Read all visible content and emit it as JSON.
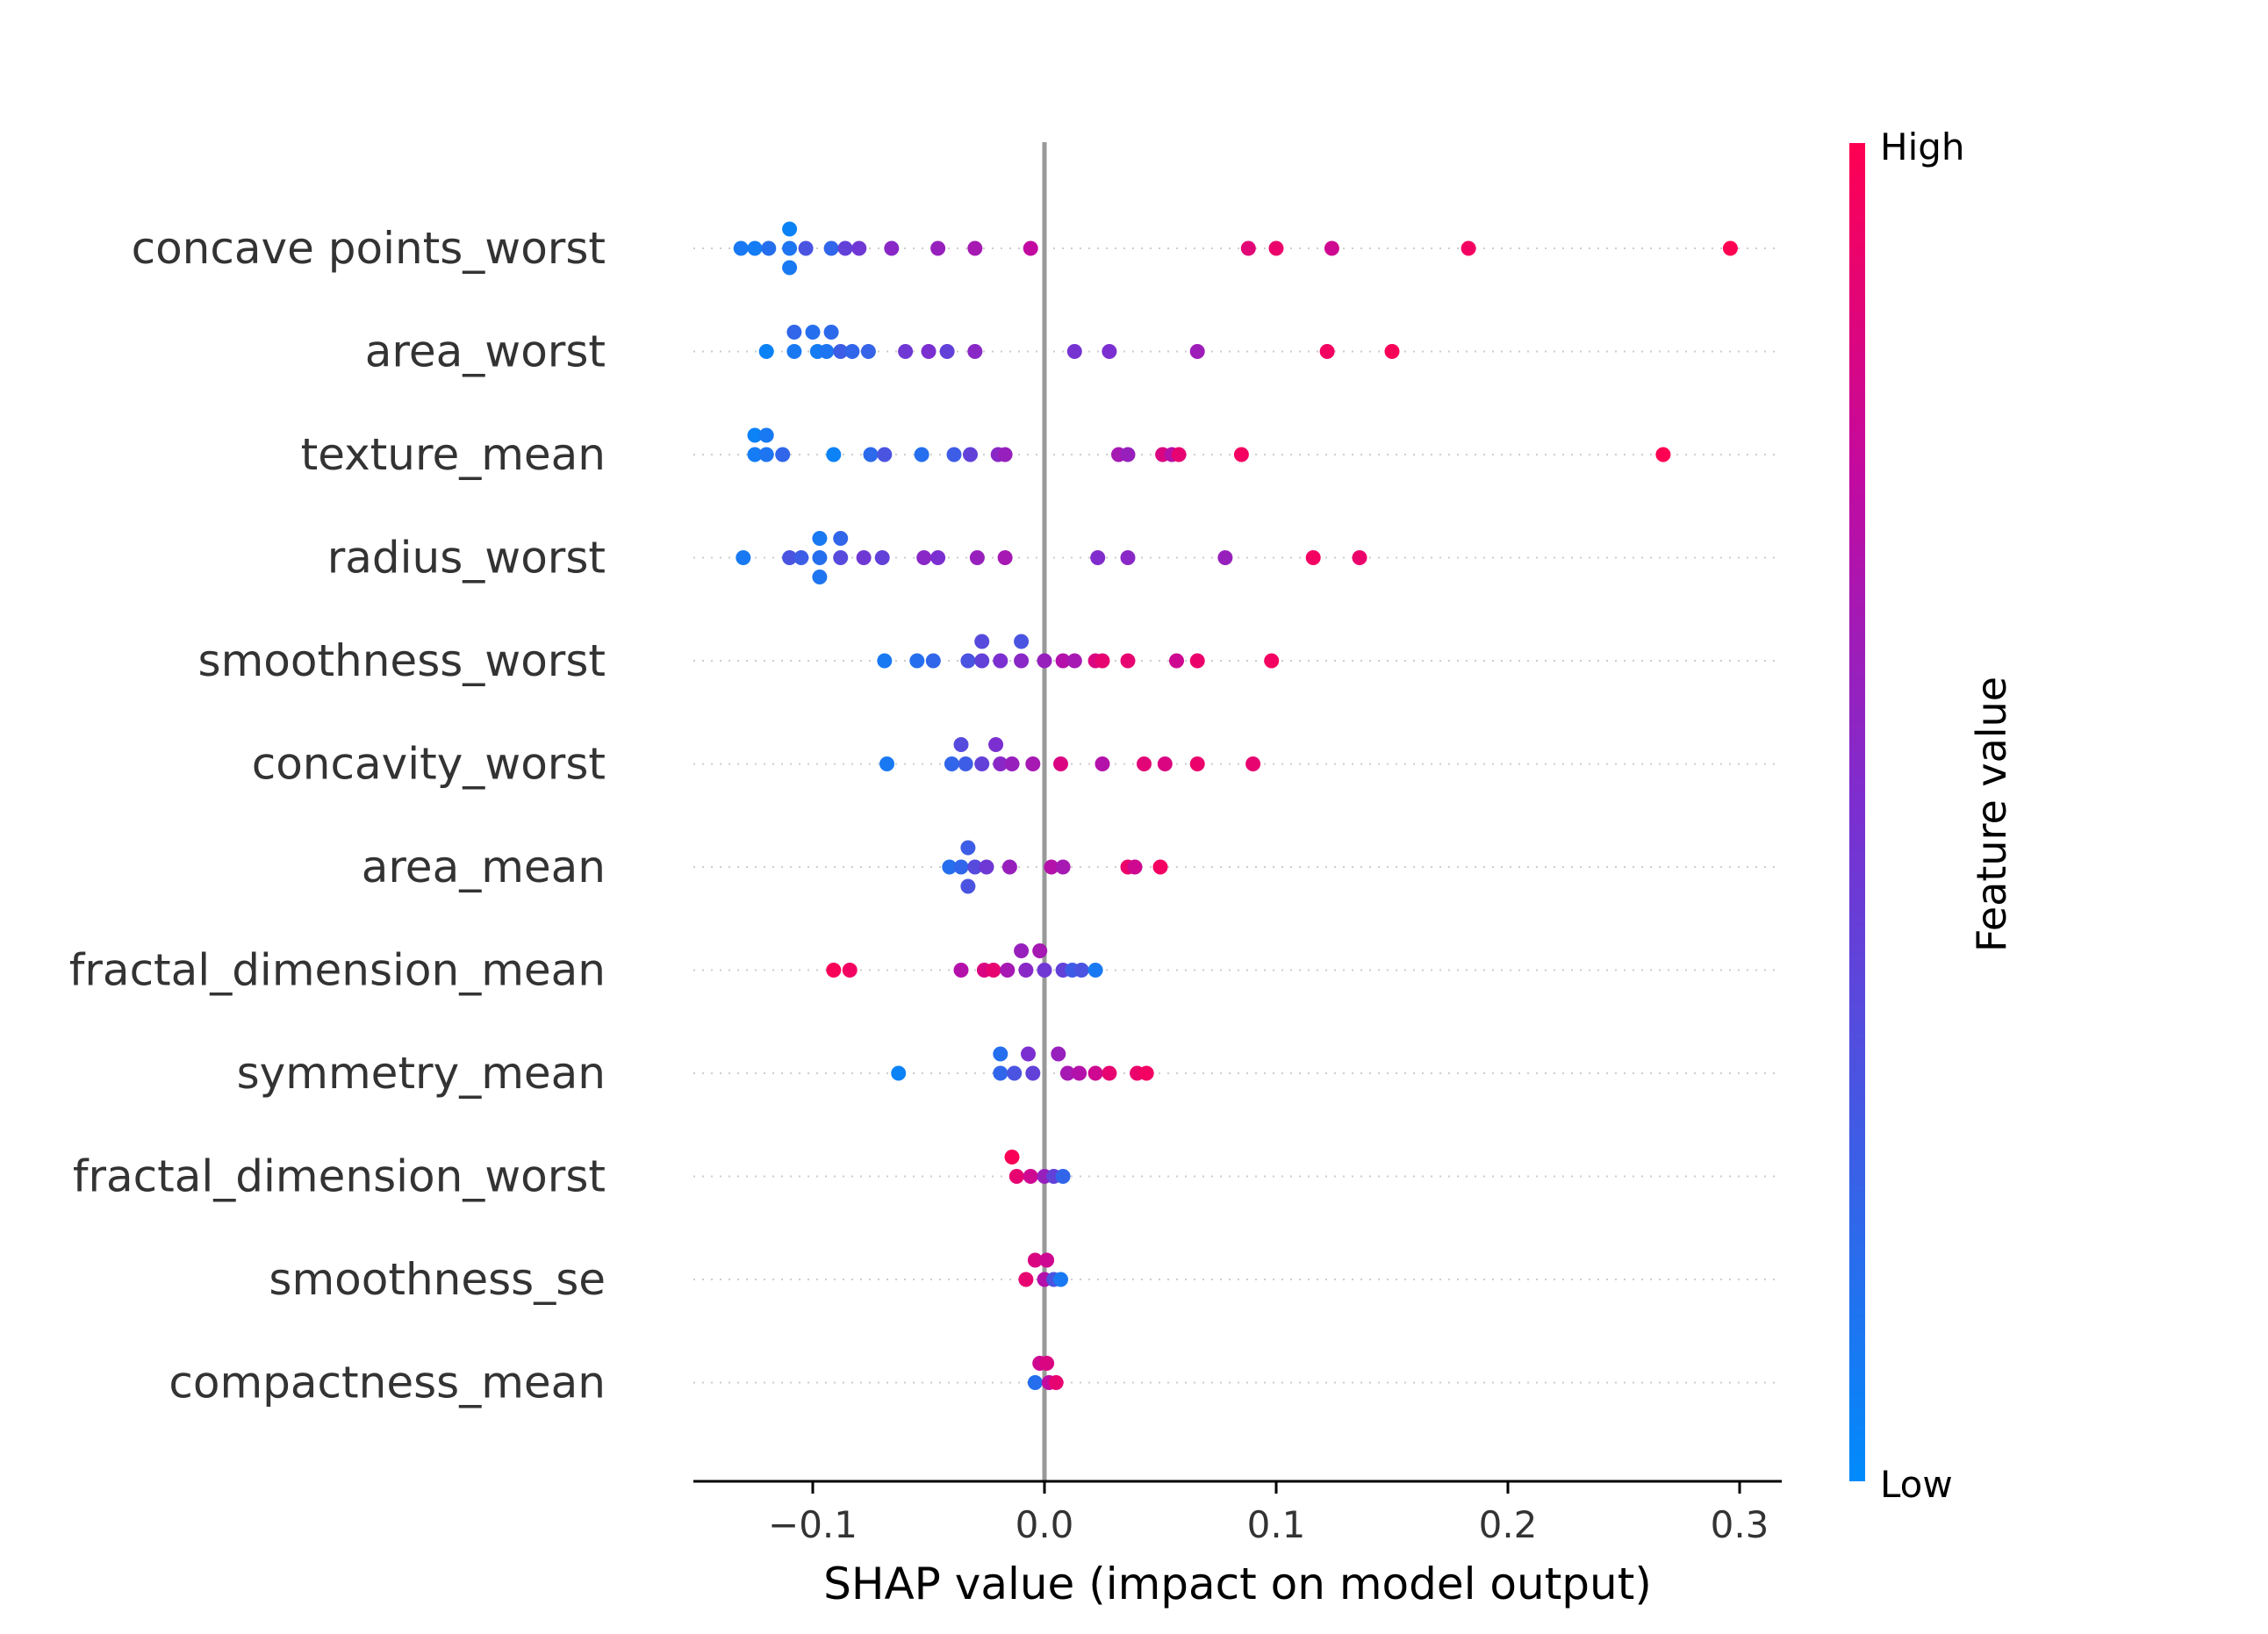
{
  "chart_data": {
    "type": "scatter",
    "subtype": "shap_beeswarm",
    "xlabel": "SHAP value (impact on model output)",
    "xlim": [
      -0.15,
      0.32
    ],
    "xticks": [
      -0.1,
      0.0,
      0.1,
      0.2,
      0.3
    ],
    "xtick_labels": [
      "−0.1",
      "0.0",
      "0.1",
      "0.2",
      "0.3"
    ],
    "colorbar": {
      "label": "Feature value",
      "high_label": "High",
      "low_label": "Low",
      "low_color": "#008bfb",
      "high_color": "#ff0052"
    },
    "features": [
      {
        "name": "concave points_worst",
        "points": [
          [
            -0.131,
            0.0,
            0.1
          ],
          [
            -0.125,
            0.0,
            0.08
          ],
          [
            -0.119,
            0.0,
            0.15
          ],
          [
            -0.11,
            0.0,
            0.12
          ],
          [
            -0.11,
            1,
            0.05
          ],
          [
            -0.11,
            -1,
            0.1
          ],
          [
            -0.103,
            0.0,
            0.3
          ],
          [
            -0.092,
            0.0,
            0.2
          ],
          [
            -0.086,
            0.0,
            0.4
          ],
          [
            -0.08,
            0.0,
            0.45
          ],
          [
            -0.066,
            0.0,
            0.55
          ],
          [
            -0.046,
            0.0,
            0.6
          ],
          [
            -0.03,
            0.0,
            0.65
          ],
          [
            -0.006,
            0.0,
            0.75
          ],
          [
            0.088,
            0.0,
            0.88
          ],
          [
            0.1,
            0.0,
            0.92
          ],
          [
            0.124,
            0.0,
            0.8
          ],
          [
            0.183,
            0.0,
            0.95
          ],
          [
            0.296,
            0.0,
            1.0
          ]
        ]
      },
      {
        "name": "area_worst",
        "points": [
          [
            -0.12,
            0.0,
            0.05
          ],
          [
            -0.108,
            0.0,
            0.1
          ],
          [
            -0.108,
            1,
            0.2
          ],
          [
            -0.1,
            1,
            0.15
          ],
          [
            -0.098,
            0.0,
            0.08
          ],
          [
            -0.094,
            0.0,
            0.12
          ],
          [
            -0.092,
            1,
            0.18
          ],
          [
            -0.088,
            0.0,
            0.25
          ],
          [
            -0.083,
            0.0,
            0.2
          ],
          [
            -0.076,
            0.0,
            0.22
          ],
          [
            -0.06,
            0.0,
            0.45
          ],
          [
            -0.05,
            0.0,
            0.5
          ],
          [
            -0.042,
            0.0,
            0.4
          ],
          [
            -0.03,
            0.0,
            0.55
          ],
          [
            0.013,
            0.0,
            0.48
          ],
          [
            0.028,
            0.0,
            0.5
          ],
          [
            0.066,
            0.0,
            0.62
          ],
          [
            0.122,
            0.0,
            0.95
          ],
          [
            0.15,
            0.0,
            0.98
          ]
        ]
      },
      {
        "name": "texture_mean",
        "points": [
          [
            -0.125,
            0.0,
            0.08
          ],
          [
            -0.125,
            1,
            0.05
          ],
          [
            -0.12,
            0.0,
            0.12
          ],
          [
            -0.12,
            1,
            0.1
          ],
          [
            -0.113,
            0.0,
            0.2
          ],
          [
            -0.091,
            0.0,
            0.05
          ],
          [
            -0.075,
            0.0,
            0.18
          ],
          [
            -0.069,
            0.0,
            0.3
          ],
          [
            -0.053,
            0.0,
            0.15
          ],
          [
            -0.039,
            0.0,
            0.25
          ],
          [
            -0.032,
            0.0,
            0.4
          ],
          [
            -0.02,
            0.0,
            0.55
          ],
          [
            -0.017,
            0.0,
            0.6
          ],
          [
            0.032,
            0.0,
            0.65
          ],
          [
            0.036,
            0.0,
            0.6
          ],
          [
            0.051,
            0.0,
            0.85
          ],
          [
            0.055,
            0.0,
            0.7
          ],
          [
            0.058,
            0.0,
            0.9
          ],
          [
            0.085,
            0.0,
            0.95
          ],
          [
            0.267,
            0.0,
            1.0
          ]
        ]
      },
      {
        "name": "radius_worst",
        "points": [
          [
            -0.13,
            0.0,
            0.1
          ],
          [
            -0.11,
            0.0,
            0.3
          ],
          [
            -0.105,
            0.0,
            0.25
          ],
          [
            -0.097,
            0.0,
            0.15
          ],
          [
            -0.097,
            1,
            0.1
          ],
          [
            -0.097,
            -1,
            0.12
          ],
          [
            -0.088,
            1,
            0.2
          ],
          [
            -0.088,
            0.0,
            0.35
          ],
          [
            -0.078,
            0.0,
            0.45
          ],
          [
            -0.07,
            0.0,
            0.4
          ],
          [
            -0.052,
            0.0,
            0.55
          ],
          [
            -0.046,
            0.0,
            0.5
          ],
          [
            -0.029,
            0.0,
            0.6
          ],
          [
            -0.017,
            0.0,
            0.65
          ],
          [
            0.023,
            0.0,
            0.52
          ],
          [
            0.036,
            0.0,
            0.55
          ],
          [
            0.078,
            0.0,
            0.6
          ],
          [
            0.116,
            0.0,
            0.95
          ],
          [
            0.136,
            0.0,
            0.92
          ]
        ]
      },
      {
        "name": "smoothness_worst",
        "points": [
          [
            -0.069,
            0.0,
            0.1
          ],
          [
            -0.055,
            0.0,
            0.15
          ],
          [
            -0.048,
            0.0,
            0.2
          ],
          [
            -0.033,
            0.0,
            0.3
          ],
          [
            -0.027,
            1,
            0.35
          ],
          [
            -0.027,
            0.0,
            0.4
          ],
          [
            -0.019,
            0.0,
            0.5
          ],
          [
            -0.01,
            1,
            0.3
          ],
          [
            -0.01,
            0.0,
            0.55
          ],
          [
            0.0,
            0.0,
            0.6
          ],
          [
            0.008,
            0.0,
            0.7
          ],
          [
            0.013,
            0.0,
            0.65
          ],
          [
            0.022,
            0.0,
            0.85
          ],
          [
            0.025,
            0.0,
            0.9
          ],
          [
            0.036,
            0.0,
            0.9
          ],
          [
            0.057,
            0.0,
            0.8
          ],
          [
            0.066,
            0.0,
            0.92
          ],
          [
            0.098,
            0.0,
            0.95
          ]
        ]
      },
      {
        "name": "concavity_worst",
        "points": [
          [
            -0.068,
            0.0,
            0.1
          ],
          [
            -0.04,
            0.0,
            0.2
          ],
          [
            -0.036,
            1,
            0.35
          ],
          [
            -0.034,
            0.0,
            0.25
          ],
          [
            -0.027,
            0.0,
            0.4
          ],
          [
            -0.021,
            1,
            0.5
          ],
          [
            -0.019,
            0.0,
            0.55
          ],
          [
            -0.014,
            0.0,
            0.6
          ],
          [
            -0.005,
            0.0,
            0.65
          ],
          [
            0.007,
            0.0,
            0.85
          ],
          [
            0.025,
            0.0,
            0.7
          ],
          [
            0.043,
            0.0,
            0.88
          ],
          [
            0.052,
            0.0,
            0.85
          ],
          [
            0.066,
            0.0,
            0.92
          ],
          [
            0.09,
            0.0,
            0.9
          ]
        ]
      },
      {
        "name": "area_mean",
        "points": [
          [
            -0.041,
            0.0,
            0.15
          ],
          [
            -0.036,
            0.0,
            0.2
          ],
          [
            -0.033,
            1,
            0.25
          ],
          [
            -0.033,
            -1,
            0.3
          ],
          [
            -0.03,
            0.0,
            0.35
          ],
          [
            -0.025,
            0.0,
            0.45
          ],
          [
            -0.015,
            0.0,
            0.6
          ],
          [
            0.003,
            0.0,
            0.7
          ],
          [
            0.008,
            0.0,
            0.65
          ],
          [
            0.036,
            0.0,
            0.92
          ],
          [
            0.039,
            0.0,
            0.8
          ],
          [
            0.05,
            0.0,
            0.95
          ]
        ]
      },
      {
        "name": "fractal_dimension_mean",
        "points": [
          [
            -0.091,
            0.0,
            0.98
          ],
          [
            -0.084,
            0.0,
            0.95
          ],
          [
            -0.036,
            0.0,
            0.7
          ],
          [
            -0.026,
            0.0,
            0.85
          ],
          [
            -0.022,
            0.0,
            0.9
          ],
          [
            -0.016,
            0.0,
            0.65
          ],
          [
            -0.01,
            1,
            0.6
          ],
          [
            -0.008,
            0.0,
            0.55
          ],
          [
            -0.002,
            1,
            0.65
          ],
          [
            0.0,
            0.0,
            0.45
          ],
          [
            0.008,
            0.0,
            0.4
          ],
          [
            0.012,
            0.0,
            0.25
          ],
          [
            0.016,
            0.0,
            0.3
          ],
          [
            0.022,
            0.0,
            0.1
          ]
        ]
      },
      {
        "name": "symmetry_mean",
        "points": [
          [
            -0.063,
            0.0,
            0.05
          ],
          [
            -0.019,
            0.0,
            0.2
          ],
          [
            -0.019,
            1,
            0.15
          ],
          [
            -0.013,
            0.0,
            0.3
          ],
          [
            -0.007,
            1,
            0.5
          ],
          [
            -0.005,
            0.0,
            0.4
          ],
          [
            0.006,
            1,
            0.6
          ],
          [
            0.01,
            0.0,
            0.65
          ],
          [
            0.015,
            0.0,
            0.7
          ],
          [
            0.022,
            0.0,
            0.8
          ],
          [
            0.028,
            0.0,
            0.9
          ],
          [
            0.04,
            0.0,
            0.92
          ],
          [
            0.044,
            0.0,
            0.95
          ]
        ]
      },
      {
        "name": "fractal_dimension_worst",
        "points": [
          [
            -0.014,
            1,
            0.98
          ],
          [
            -0.012,
            0.0,
            0.9
          ],
          [
            -0.006,
            0.0,
            0.8
          ],
          [
            0.0,
            0.0,
            0.6
          ],
          [
            0.004,
            0.0,
            0.4
          ],
          [
            0.008,
            0.0,
            0.2
          ]
        ]
      },
      {
        "name": "smoothness_se",
        "points": [
          [
            -0.008,
            0.0,
            0.9
          ],
          [
            -0.004,
            1,
            0.85
          ],
          [
            0.0,
            0.0,
            0.7
          ],
          [
            0.001,
            1,
            0.8
          ],
          [
            0.004,
            0.0,
            0.3
          ],
          [
            0.007,
            0.0,
            0.1
          ]
        ]
      },
      {
        "name": "compactness_mean",
        "points": [
          [
            -0.004,
            0.0,
            0.15
          ],
          [
            -0.002,
            1,
            0.8
          ],
          [
            0.001,
            1,
            0.85
          ],
          [
            0.002,
            0.0,
            0.75
          ],
          [
            0.005,
            0.0,
            0.9
          ]
        ]
      }
    ]
  }
}
